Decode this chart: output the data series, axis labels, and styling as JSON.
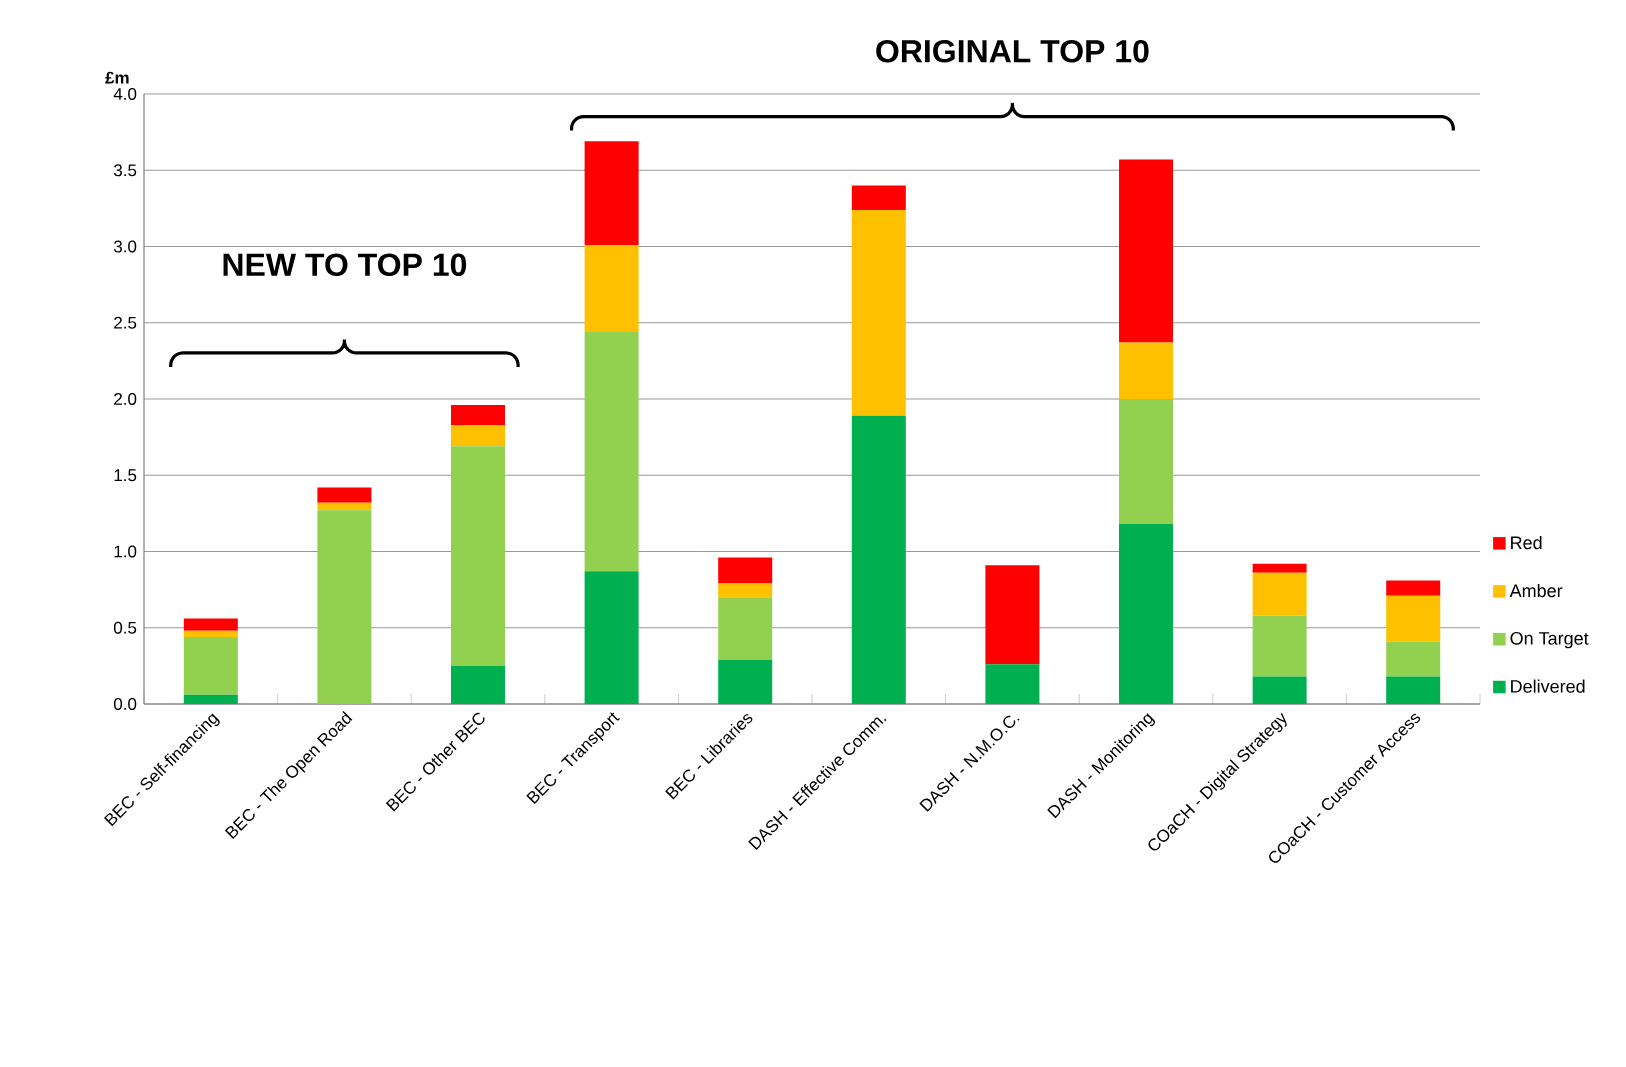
{
  "chart_data": {
    "type": "bar",
    "stacked": true,
    "ylabel": "£m",
    "categories": [
      "BEC - Self-financing",
      "BEC - The Open Road",
      "BEC - Other BEC",
      "BEC - Transport",
      "BEC - Libraries",
      "DASH - Effective Comm.",
      "DASH - N.M.O.C.",
      "DASH - Monitoring",
      "COaCH - Digital Strategy",
      "COaCH - Customer Access"
    ],
    "series": [
      {
        "name": "Delivered",
        "color": "#00b050",
        "values": [
          0.06,
          0,
          0.25,
          0.87,
          0.29,
          1.89,
          0.26,
          1.18,
          0.18,
          0.18
        ]
      },
      {
        "name": "On Target",
        "color": "#92d050",
        "values": [
          0.38,
          1.27,
          1.44,
          1.57,
          0.41,
          0,
          0,
          0.82,
          0.4,
          0.23
        ]
      },
      {
        "name": "Amber",
        "color": "#ffc000",
        "values": [
          0.04,
          0.05,
          0.14,
          0.57,
          0.09,
          1.35,
          0,
          0.37,
          0.28,
          0.3
        ]
      },
      {
        "name": "Red",
        "color": "#ff0000",
        "values": [
          0.08,
          0.1,
          0.13,
          0.68,
          0.17,
          0.16,
          0.65,
          1.2,
          0.06,
          0.1
        ]
      }
    ],
    "ylim": [
      0,
      4.0
    ],
    "yticks": [
      {
        "value": 0,
        "label": "0.0"
      },
      {
        "value": 0.5,
        "label": "0.5"
      },
      {
        "value": 1.0,
        "label": "1.0"
      },
      {
        "value": 1.5,
        "label": "1.5"
      },
      {
        "value": 2.0,
        "label": "2.0"
      },
      {
        "value": 2.5,
        "label": "2.5"
      },
      {
        "value": 3.0,
        "label": "3.0"
      },
      {
        "value": 3.5,
        "label": "3.5"
      },
      {
        "value": 4.0,
        "label": "4.0"
      }
    ],
    "grid": "y",
    "legend": "right",
    "annotations": [
      "NEW TO TOP 10",
      "ORIGINAL TOP 10"
    ]
  }
}
